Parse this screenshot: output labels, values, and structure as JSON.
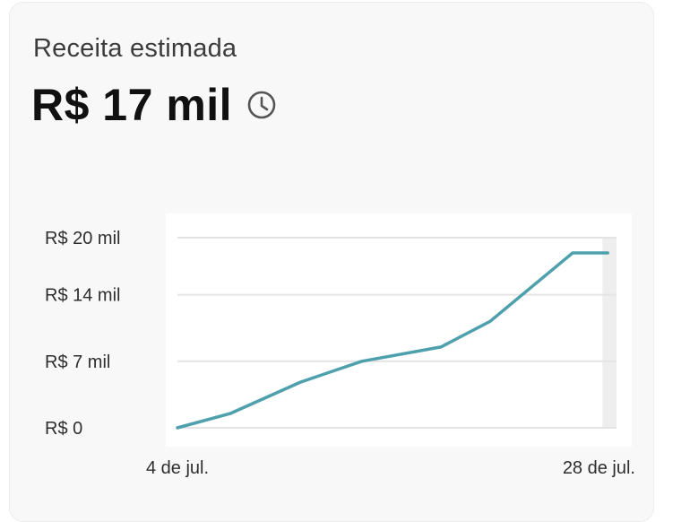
{
  "card": {
    "title": "Receita estimada",
    "value": "R$ 17 mil",
    "icon": "clock-icon"
  },
  "colors": {
    "line": "#4ea0ad",
    "grid": "#e4e4e4",
    "plot_bg": "#ffffff",
    "card_bg": "#f8f8f8",
    "projection_band": "#eeeeee"
  },
  "chart_data": {
    "type": "line",
    "title": "",
    "xlabel": "",
    "ylabel": "",
    "x_range": [
      4,
      29
    ],
    "ylim": [
      0,
      20
    ],
    "y_ticks": [
      {
        "value": 0,
        "label": "R$ 0"
      },
      {
        "value": 7,
        "label": "R$ 7 mil"
      },
      {
        "value": 14,
        "label": "R$ 14 mil"
      },
      {
        "value": 20,
        "label": "R$ 20 mil"
      }
    ],
    "x_ticks": [
      {
        "value": 4,
        "label": "4 de jul."
      },
      {
        "value": 28,
        "label": "28 de jul."
      }
    ],
    "grid": true,
    "highlight_band": [
      28.2,
      29
    ],
    "series": [
      {
        "x": [
          4,
          7,
          11,
          14.5,
          19,
          21.8,
          26.5,
          28.5
        ],
        "values": [
          0,
          1.5,
          4.8,
          7,
          8.5,
          11.2,
          18.4,
          18.4
        ]
      }
    ]
  }
}
